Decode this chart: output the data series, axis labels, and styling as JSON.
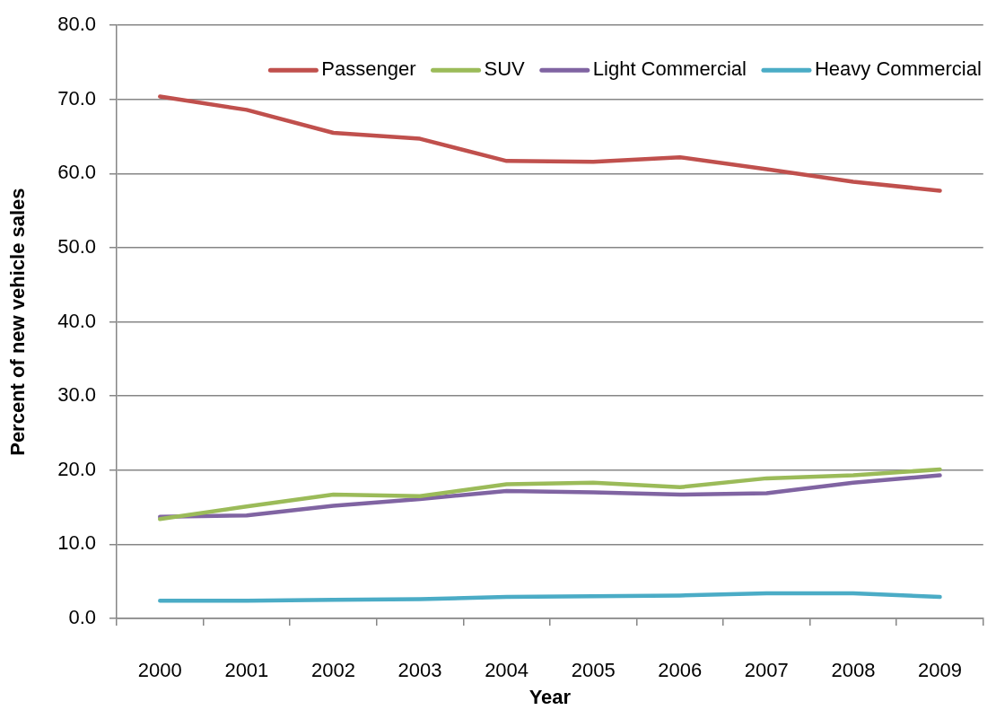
{
  "chart_data": {
    "type": "line",
    "xlabel": "Year",
    "ylabel": "Percent of new vehicle sales",
    "categories": [
      "2000",
      "2001",
      "2002",
      "2003",
      "2004",
      "2005",
      "2006",
      "2007",
      "2008",
      "2009"
    ],
    "series": [
      {
        "name": "Passenger",
        "color": "#c0504d",
        "values": [
          70.4,
          68.6,
          65.5,
          64.7,
          61.7,
          61.6,
          62.2,
          60.6,
          58.9,
          57.7
        ]
      },
      {
        "name": "SUV",
        "color": "#9bbb59",
        "values": [
          13.4,
          15.1,
          16.7,
          16.5,
          18.1,
          18.3,
          17.7,
          18.9,
          19.3,
          20.1
        ]
      },
      {
        "name": "Light Commercial",
        "color": "#8064a2",
        "values": [
          13.7,
          13.9,
          15.2,
          16.1,
          17.2,
          17.0,
          16.7,
          16.9,
          18.3,
          19.3
        ]
      },
      {
        "name": "Heavy Commercial",
        "color": "#4bacc6",
        "values": [
          2.4,
          2.4,
          2.5,
          2.6,
          2.9,
          3.0,
          3.1,
          3.4,
          3.4,
          2.9
        ]
      }
    ],
    "ylim": [
      0,
      80
    ],
    "yticks": [
      {
        "value": 0,
        "label": "0.0"
      },
      {
        "value": 10,
        "label": "10.0"
      },
      {
        "value": 20,
        "label": "20.0"
      },
      {
        "value": 30,
        "label": "30.0"
      },
      {
        "value": 40,
        "label": "40.0"
      },
      {
        "value": 50,
        "label": "50.0"
      },
      {
        "value": 60,
        "label": "60.0"
      },
      {
        "value": 70,
        "label": "70.0"
      },
      {
        "value": 80,
        "label": "80.0"
      }
    ],
    "grid": "y",
    "legend": "top right",
    "marker": "none",
    "line_style": "solid"
  }
}
